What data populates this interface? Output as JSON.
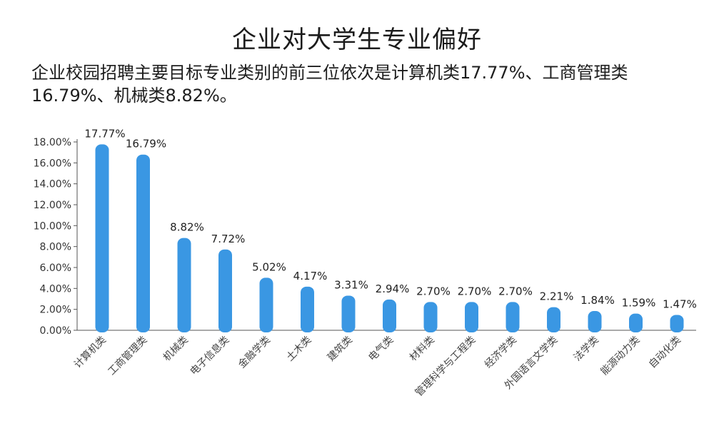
{
  "title": "企业对大学生专业偏好",
  "subtitle": "企业校园招聘主要目标专业类别的前三位依次是计算机类17.77%、工商管理类16.79%、机械类8.82%。",
  "colors": {
    "bar": "#3a97e3",
    "axis": "#555555"
  },
  "chart_data": {
    "type": "bar",
    "categories": [
      "计算机类",
      "工商管理类",
      "机械类",
      "电子信息类",
      "金融学类",
      "土木类",
      "建筑类",
      "电气类",
      "材料类",
      "管理科学与工程类",
      "经济学类",
      "外国语言文学类",
      "法学类",
      "能源动力类",
      "自动化类"
    ],
    "values": [
      17.77,
      16.79,
      8.82,
      7.72,
      5.02,
      4.17,
      3.31,
      2.94,
      2.7,
      2.7,
      2.7,
      2.21,
      1.84,
      1.59,
      1.47
    ],
    "value_labels": [
      "17.77%",
      "16.79%",
      "8.82%",
      "7.72%",
      "5.02%",
      "4.17%",
      "3.31%",
      "2.94%",
      "2.70%",
      "2.70%",
      "2.70%",
      "2.21%",
      "1.84%",
      "1.59%",
      "1.47%"
    ],
    "yticks": [
      "0.00%",
      "2.00%",
      "4.00%",
      "6.00%",
      "8.00%",
      "10.00%",
      "12.00%",
      "14.00%",
      "16.00%",
      "18.00%"
    ],
    "ylim": [
      0,
      18
    ],
    "grid": false,
    "xlabel": "",
    "ylabel": ""
  }
}
